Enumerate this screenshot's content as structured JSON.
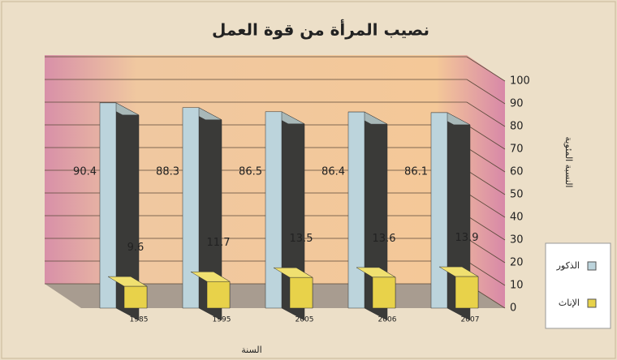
{
  "chart_data": {
    "type": "bar3d",
    "title": "نصيب المرأة من قوة العمل",
    "x_label": "السنة",
    "y_label": "النسبة المئوية",
    "categories": [
      "1985",
      "1995",
      "2005",
      "2006",
      "2007"
    ],
    "series": [
      {
        "name": "الذكور",
        "color": "#bcd4dc",
        "values": [
          90.4,
          88.3,
          86.5,
          86.4,
          86.1
        ]
      },
      {
        "name": "الإناث",
        "color": "#e8d24a",
        "values": [
          9.6,
          11.7,
          13.5,
          13.6,
          13.9
        ]
      }
    ],
    "ylim": [
      0,
      100
    ],
    "yticks": [
      0,
      10,
      20,
      30,
      40,
      50,
      60,
      70,
      80,
      90,
      100
    ],
    "grid": true
  }
}
